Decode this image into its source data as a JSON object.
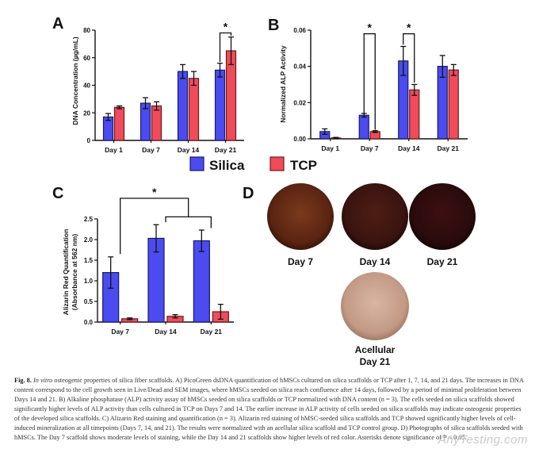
{
  "figure": {
    "panels": {
      "a": {
        "letter": "A",
        "ylabel": "DNA Concentration (µg/mL)"
      },
      "b": {
        "letter": "B",
        "ylabel": "Normalized ALP Activity"
      },
      "c": {
        "letter": "C",
        "ylabel_line1": "Alizarin Red Quantification",
        "ylabel_line2": "(Absorbance at 562 nm)"
      },
      "d": {
        "letter": "D",
        "photos": [
          {
            "label": "Day 7",
            "color": "#5a2412"
          },
          {
            "label": "Day 14",
            "color": "#3a1410"
          },
          {
            "label": "Day 21",
            "color": "#2a0b0c"
          },
          {
            "label_line1": "Acellular",
            "label_line2": "Day 21",
            "color": "#c29a86"
          }
        ]
      }
    },
    "legend": {
      "silica": "Silica",
      "tcp": "TCP"
    },
    "significance_mark": "*",
    "colors": {
      "silica": "#4b4bf0",
      "tcp": "#f04b5a"
    }
  },
  "chart_data": [
    {
      "panel": "A",
      "type": "bar",
      "categories": [
        "Day 1",
        "Day 7",
        "Day 14",
        "Day 21"
      ],
      "ylabel": "DNA Concentration (µg/mL)",
      "ylim": [
        0,
        80
      ],
      "yticks": [
        0,
        20,
        40,
        60,
        80
      ],
      "series": [
        {
          "name": "Silica",
          "values": [
            17,
            27,
            50,
            51
          ],
          "errors": [
            2.5,
            4,
            5,
            5
          ]
        },
        {
          "name": "TCP",
          "values": [
            24,
            25,
            45,
            65
          ],
          "errors": [
            1,
            3,
            5,
            10
          ]
        }
      ],
      "significance": [
        {
          "category": "Day 21",
          "label": "*"
        }
      ]
    },
    {
      "panel": "B",
      "type": "bar",
      "categories": [
        "Day 1",
        "Day 7",
        "Day 14",
        "Day 21"
      ],
      "ylabel": "Normalized ALP Activity",
      "ylim": [
        0,
        0.06
      ],
      "yticks": [
        "0.00",
        "0.02",
        "0.04",
        "0.06"
      ],
      "series": [
        {
          "name": "Silica",
          "values": [
            0.004,
            0.013,
            0.043,
            0.04
          ],
          "errors": [
            0.0015,
            0.001,
            0.008,
            0.006
          ]
        },
        {
          "name": "TCP",
          "values": [
            0.0005,
            0.004,
            0.027,
            0.038
          ],
          "errors": [
            0.0003,
            0.0005,
            0.003,
            0.003
          ]
        }
      ],
      "significance": [
        {
          "category": "Day 7",
          "label": "*"
        },
        {
          "category": "Day 14",
          "label": "*"
        }
      ]
    },
    {
      "panel": "C",
      "type": "bar",
      "categories": [
        "Day 7",
        "Day 14",
        "Day 21"
      ],
      "ylabel": "Alizarin Red Quantification (Absorbance at 562 nm)",
      "ylim": [
        0,
        2.5
      ],
      "yticks": [
        "0.0",
        "0.5",
        "1.0",
        "1.5",
        "2.0",
        "2.5"
      ],
      "series": [
        {
          "name": "Silica",
          "values": [
            1.2,
            2.03,
            1.97
          ],
          "errors": [
            0.38,
            0.33,
            0.26
          ]
        },
        {
          "name": "TCP",
          "values": [
            0.08,
            0.14,
            0.25
          ],
          "errors": [
            0.02,
            0.04,
            0.18
          ]
        }
      ],
      "significance": [
        {
          "from": "Day 7",
          "to": "Day 14 / Day 21",
          "label": "*"
        }
      ]
    }
  ],
  "caption": {
    "fig_label": "Fig. 8.",
    "title_italic": "In vitro",
    "text": " osteogenic properties of silica fiber scaffolds. A) PicoGreen dsDNA quantification of hMSCs cultured on silica scaffolds or TCP after 1, 7, 14, and 21 days. The increases in DNA content correspond to the cell growth seen in Live/Dead and SEM images, where hMSCs seeded on silica reach confluence after 14 days, followed by a period of minimal proliferation between Days 14 and 21. B) Alkaline phosphatase (ALP) activity assay of hMSCs seeded on silica scaffolds or TCP normalized with DNA content (n = 3). The cells seeded on silica scaffolds showed significantly higher levels of ALP activity than cells cultured in TCP on Days 7 and 14. The earlier increase in ALP activity of cells seeded on silica scaffolds may indicate osteogenic properties of the developed silica scaffolds. C) Alizarin Red staining and quantification (n = 3). Alizarin red staining of hMSC-seeded silica scaffolds and TCP showed significantly higher levels of cell-induced mineralization at all timepoints (Days 7, 14, and 21). The results were normalized with an acellular silica scaffold and TCP control group. D) Photographs of silica scaffolds seeded with hMSCs. The Day 7 scaffold shows moderate levels of staining, while the Day 14 and 21 scaffolds show higher levels of red color. Asterisks denote significance of P < 0.05."
  },
  "watermark": "AnyTesting.com"
}
